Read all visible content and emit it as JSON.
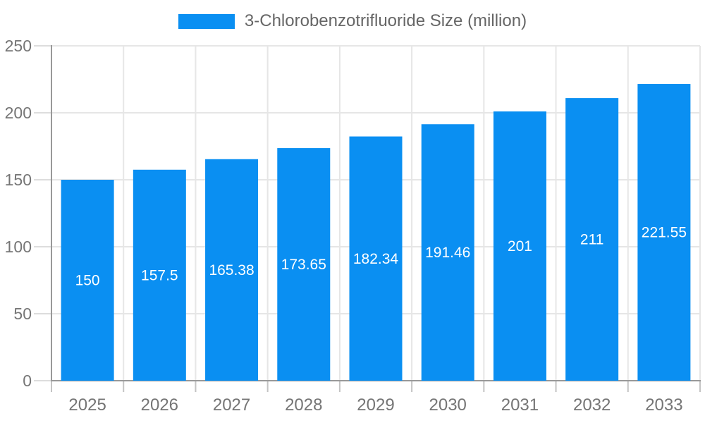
{
  "legend": {
    "label": "3-Chlorobenzotrifluoride Size (million)"
  },
  "chart_data": {
    "type": "bar",
    "title": "3-Chlorobenzotrifluoride Size (million)",
    "categories": [
      "2025",
      "2026",
      "2027",
      "2028",
      "2029",
      "2030",
      "2031",
      "2032",
      "2033"
    ],
    "values": [
      150,
      157.5,
      165.38,
      173.65,
      182.34,
      191.46,
      201,
      211,
      221.55
    ],
    "value_labels": [
      "150",
      "157.5",
      "165.38",
      "173.65",
      "182.34",
      "191.46",
      "201",
      "211",
      "221.55"
    ],
    "legend_label": "3-Chlorobenzotrifluoride Size (million)",
    "xlabel": "",
    "ylabel": "",
    "ylim": [
      0,
      250
    ],
    "yticks": [
      0,
      50,
      100,
      150,
      200,
      250
    ],
    "grid": "both",
    "legend_position": "top-center"
  },
  "colors": {
    "bar": "#0a8ff2",
    "grid": "#e6e6e6",
    "axis": "#999999",
    "x_tick": "#c4c4c4",
    "y_tick": "#dddddd",
    "tick_label": "#757575",
    "value_label": "#ffffff",
    "legend_text": "#666666",
    "background": "#ffffff"
  }
}
